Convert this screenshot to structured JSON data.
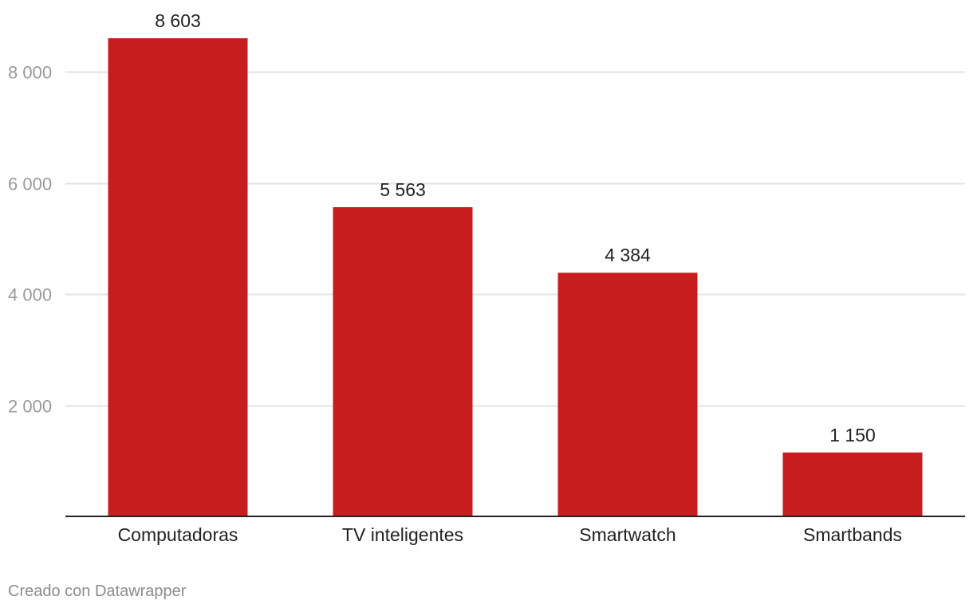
{
  "chart_data": {
    "type": "bar",
    "categories": [
      "Computadoras",
      "TV inteligentes",
      "Smartwatch",
      "Smartbands"
    ],
    "values": [
      8603,
      5563,
      4384,
      1150
    ],
    "value_labels": [
      "8 603",
      "5 563",
      "4 384",
      "1 150"
    ],
    "y_ticks": [
      2000,
      4000,
      6000,
      8000
    ],
    "y_tick_labels": [
      "2 000",
      "4 000",
      "6 000",
      "8 000"
    ],
    "ylim": [
      0,
      8603
    ],
    "title": "",
    "xlabel": "",
    "ylabel": "",
    "grid": true,
    "legend": "none",
    "colors": {
      "bar": "#c81d1f",
      "gridline": "#e3e3e3",
      "baseline": "#222222",
      "tick_label": "#9a9a9a",
      "text": "#222222"
    }
  },
  "footer": {
    "credit": "Creado con Datawrapper"
  }
}
